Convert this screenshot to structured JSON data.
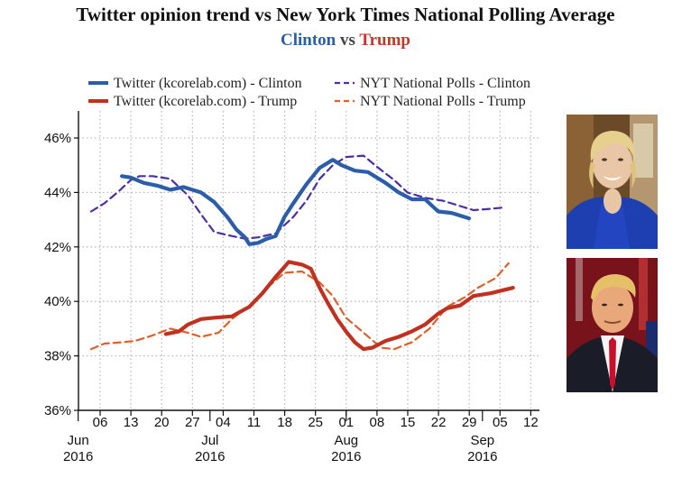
{
  "header": {
    "title": "Twitter opinion trend vs New York Times National Polling Average",
    "subtitle_clinton": "Clinton",
    "subtitle_vs": "vs",
    "subtitle_trump": "Trump"
  },
  "colors": {
    "clinton_twitter": "#2a5ea8",
    "clinton_nyt": "#4b2fa3",
    "trump_twitter": "#c0321f",
    "trump_nyt": "#e0602a",
    "grid": "#bbbbbb"
  },
  "photos": {
    "clinton_icon": "clinton-portrait",
    "trump_icon": "trump-portrait"
  },
  "chart_data": {
    "type": "line",
    "title": "Twitter opinion trend vs New York Times National Polling Average",
    "subtitle": "Clinton vs Trump",
    "xlabel": "",
    "ylabel": "",
    "ylim": [
      36,
      47
    ],
    "grid": true,
    "legend_position": "top",
    "x_ticks": [
      "2016-06-06",
      "2016-06-13",
      "2016-06-20",
      "2016-06-27",
      "2016-07-04",
      "2016-07-11",
      "2016-07-18",
      "2016-07-25",
      "2016-08-01",
      "2016-08-08",
      "2016-08-15",
      "2016-08-22",
      "2016-08-29",
      "2016-09-05",
      "2016-09-12"
    ],
    "x_tick_labels": [
      "06",
      "13",
      "20",
      "27",
      "04",
      "11",
      "18",
      "25",
      "01",
      "08",
      "15",
      "22",
      "29",
      "05",
      "12"
    ],
    "month_labels": [
      {
        "month": "Jun",
        "year": "2016",
        "date": "2016-06-01"
      },
      {
        "month": "Jul",
        "year": "2016",
        "date": "2016-07-01"
      },
      {
        "month": "Aug",
        "year": "2016",
        "date": "2016-08-01"
      },
      {
        "month": "Sep",
        "year": "2016",
        "date": "2016-09-01"
      }
    ],
    "y_ticks": [
      36,
      38,
      40,
      42,
      44,
      46
    ],
    "y_tick_labels": [
      "36%",
      "38%",
      "40%",
      "42%",
      "44%",
      "46%"
    ],
    "series": [
      {
        "name": "Twitter (kcorelab.com) - Clinton",
        "style": "solid",
        "points": [
          [
            "2016-06-13",
            44.6
          ],
          [
            "2016-06-15",
            44.55
          ],
          [
            "2016-06-18",
            44.35
          ],
          [
            "2016-06-21",
            44.25
          ],
          [
            "2016-06-24",
            44.1
          ],
          [
            "2016-06-27",
            44.2
          ],
          [
            "2016-07-01",
            44.0
          ],
          [
            "2016-07-04",
            43.65
          ],
          [
            "2016-07-07",
            43.1
          ],
          [
            "2016-07-09",
            42.65
          ],
          [
            "2016-07-11",
            42.35
          ],
          [
            "2016-07-12",
            42.1
          ],
          [
            "2016-07-14",
            42.15
          ],
          [
            "2016-07-16",
            42.3
          ],
          [
            "2016-07-18",
            42.4
          ],
          [
            "2016-07-20",
            43.1
          ],
          [
            "2016-07-22",
            43.6
          ],
          [
            "2016-07-25",
            44.3
          ],
          [
            "2016-07-28",
            44.9
          ],
          [
            "2016-07-31",
            45.2
          ],
          [
            "2016-08-02",
            45.0
          ],
          [
            "2016-08-05",
            44.8
          ],
          [
            "2016-08-08",
            44.75
          ],
          [
            "2016-08-12",
            44.35
          ],
          [
            "2016-08-15",
            44.0
          ],
          [
            "2016-08-18",
            43.75
          ],
          [
            "2016-08-21",
            43.75
          ],
          [
            "2016-08-24",
            43.3
          ],
          [
            "2016-08-27",
            43.25
          ],
          [
            "2016-08-31",
            43.05
          ]
        ]
      },
      {
        "name": "Twitter (kcorelab.com) - Trump",
        "style": "solid",
        "points": [
          [
            "2016-06-23",
            38.8
          ],
          [
            "2016-06-26",
            38.9
          ],
          [
            "2016-06-28",
            39.15
          ],
          [
            "2016-07-01",
            39.35
          ],
          [
            "2016-07-04",
            39.4
          ],
          [
            "2016-07-08",
            39.45
          ],
          [
            "2016-07-12",
            39.8
          ],
          [
            "2016-07-15",
            40.3
          ],
          [
            "2016-07-18",
            40.9
          ],
          [
            "2016-07-21",
            41.45
          ],
          [
            "2016-07-24",
            41.35
          ],
          [
            "2016-07-26",
            41.2
          ],
          [
            "2016-07-28",
            40.5
          ],
          [
            "2016-07-30",
            39.9
          ],
          [
            "2016-08-01",
            39.35
          ],
          [
            "2016-08-03",
            38.9
          ],
          [
            "2016-08-05",
            38.5
          ],
          [
            "2016-08-07",
            38.25
          ],
          [
            "2016-08-09",
            38.3
          ],
          [
            "2016-08-12",
            38.55
          ],
          [
            "2016-08-15",
            38.7
          ],
          [
            "2016-08-18",
            38.9
          ],
          [
            "2016-08-21",
            39.15
          ],
          [
            "2016-08-24",
            39.55
          ],
          [
            "2016-08-26",
            39.75
          ],
          [
            "2016-08-29",
            39.85
          ],
          [
            "2016-09-01",
            40.2
          ],
          [
            "2016-09-05",
            40.3
          ],
          [
            "2016-09-10",
            40.5
          ]
        ]
      },
      {
        "name": "NYT National Polls - Clinton",
        "style": "dashed",
        "points": [
          [
            "2016-06-06",
            43.3
          ],
          [
            "2016-06-09",
            43.6
          ],
          [
            "2016-06-12",
            44.0
          ],
          [
            "2016-06-15",
            44.45
          ],
          [
            "2016-06-17",
            44.6
          ],
          [
            "2016-06-20",
            44.6
          ],
          [
            "2016-06-24",
            44.5
          ],
          [
            "2016-06-28",
            43.9
          ],
          [
            "2016-07-01",
            43.2
          ],
          [
            "2016-07-04",
            42.55
          ],
          [
            "2016-07-08",
            42.4
          ],
          [
            "2016-07-11",
            42.3
          ],
          [
            "2016-07-14",
            42.35
          ],
          [
            "2016-07-18",
            42.5
          ],
          [
            "2016-07-22",
            43.1
          ],
          [
            "2016-07-25",
            43.7
          ],
          [
            "2016-07-28",
            44.5
          ],
          [
            "2016-07-31",
            45.0
          ],
          [
            "2016-08-03",
            45.3
          ],
          [
            "2016-08-07",
            45.35
          ],
          [
            "2016-08-10",
            44.95
          ],
          [
            "2016-08-14",
            44.45
          ],
          [
            "2016-08-17",
            44.0
          ],
          [
            "2016-08-21",
            43.8
          ],
          [
            "2016-08-25",
            43.7
          ],
          [
            "2016-08-29",
            43.5
          ],
          [
            "2016-09-01",
            43.35
          ],
          [
            "2016-09-05",
            43.4
          ],
          [
            "2016-09-08",
            43.45
          ]
        ]
      },
      {
        "name": "NYT National Polls - Trump",
        "style": "dashed",
        "points": [
          [
            "2016-06-06",
            38.25
          ],
          [
            "2016-06-09",
            38.45
          ],
          [
            "2016-06-13",
            38.5
          ],
          [
            "2016-06-16",
            38.55
          ],
          [
            "2016-06-20",
            38.75
          ],
          [
            "2016-06-24",
            39.0
          ],
          [
            "2016-06-28",
            38.85
          ],
          [
            "2016-07-01",
            38.7
          ],
          [
            "2016-07-05",
            38.85
          ],
          [
            "2016-07-08",
            39.35
          ],
          [
            "2016-07-12",
            39.85
          ],
          [
            "2016-07-16",
            40.5
          ],
          [
            "2016-07-20",
            41.05
          ],
          [
            "2016-07-24",
            41.1
          ],
          [
            "2016-07-28",
            40.7
          ],
          [
            "2016-07-31",
            40.2
          ],
          [
            "2016-08-03",
            39.4
          ],
          [
            "2016-08-07",
            38.85
          ],
          [
            "2016-08-11",
            38.3
          ],
          [
            "2016-08-14",
            38.25
          ],
          [
            "2016-08-18",
            38.5
          ],
          [
            "2016-08-22",
            39.0
          ],
          [
            "2016-08-26",
            39.8
          ],
          [
            "2016-08-30",
            40.15
          ],
          [
            "2016-09-02",
            40.5
          ],
          [
            "2016-09-06",
            40.85
          ],
          [
            "2016-09-09",
            41.4
          ]
        ]
      }
    ]
  }
}
